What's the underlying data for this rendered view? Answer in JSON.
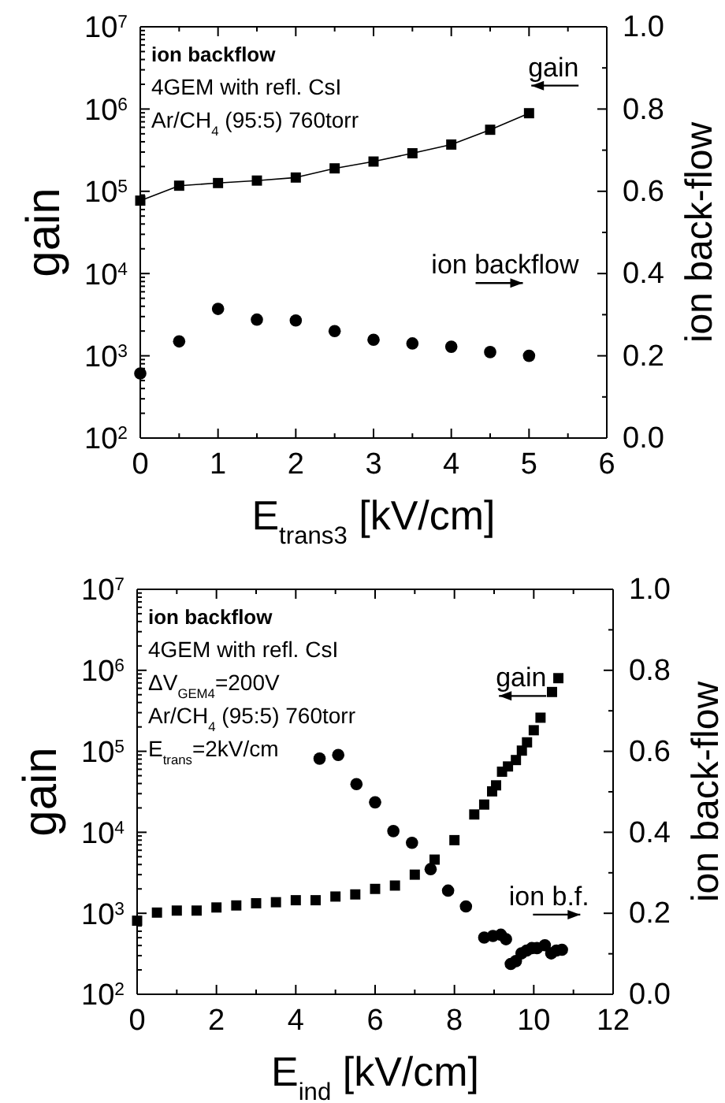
{
  "chart_data": [
    {
      "type": "scatter",
      "title": "ion backflow",
      "annotations": [
        "4GEM with refl. CsI",
        "Ar/CH$_{4}$ (95:5) 760torr"
      ],
      "xlabel": "E$_{trans3}$ [kV/cm]",
      "ylabel": "gain",
      "y2label": "ion back-flow",
      "xlim": [
        0,
        6
      ],
      "xticks": [
        0,
        1,
        2,
        3,
        4,
        5,
        6
      ],
      "ylim": [
        100,
        10000000
      ],
      "yticks": [
        {
          "value": 100,
          "label": "10$^{2}$"
        },
        {
          "value": 1000,
          "label": "10$^{3}$"
        },
        {
          "value": 10000,
          "label": "10$^{4}$"
        },
        {
          "value": 100000,
          "label": "10$^{5}$"
        },
        {
          "value": 1000000,
          "label": "10$^{6}$"
        },
        {
          "value": 10000000,
          "label": "10$^{7}$"
        }
      ],
      "y2lim": [
        0,
        1
      ],
      "y2ticks": [
        {
          "value": 0,
          "label": "0.0"
        },
        {
          "value": 0.2,
          "label": "0.2"
        },
        {
          "value": 0.4,
          "label": "0.4"
        },
        {
          "value": 0.6,
          "label": "0.6"
        },
        {
          "value": 0.8,
          "label": "0.8"
        },
        {
          "value": 1,
          "label": "1.0"
        }
      ],
      "log": "y",
      "grid": false,
      "series": [
        {
          "name": "gain",
          "type": "line",
          "marker": "square",
          "color": "#000000",
          "x": [
            0,
            0.5,
            1,
            1.5,
            2,
            2.5,
            3,
            3.5,
            4,
            4.5,
            5
          ],
          "values": [
            77000,
            117000,
            126000,
            135000,
            147000,
            190000,
            230000,
            290000,
            370000,
            560000,
            890000
          ]
        },
        {
          "name": "ion backflow",
          "type": "scatter",
          "marker": "circle",
          "axis": "y2",
          "color": "#000000",
          "x": [
            0,
            0.5,
            1,
            1.5,
            2,
            2.5,
            3,
            3.5,
            4,
            4.5,
            5
          ],
          "values": [
            0.157,
            0.235,
            0.314,
            0.288,
            0.286,
            0.26,
            0.239,
            0.23,
            0.222,
            0.209,
            0.2
          ]
        }
      ]
    },
    {
      "type": "scatter",
      "title": "ion backflow",
      "annotations": [
        "4GEM with refl. CsI",
        "ΔV$_{GEM4}$=200V",
        "Ar/CH$_{4}$ (95:5) 760torr",
        "E$_{trans}$=2kV/cm"
      ],
      "xlabel": "E$_{ind}$ [kV/cm]",
      "ylabel": "gain",
      "y2label": "ion back-flow",
      "xlim": [
        0,
        12
      ],
      "xticks": [
        0,
        2,
        4,
        6,
        8,
        10,
        12
      ],
      "ylim": [
        100,
        10000000
      ],
      "yticks": [
        {
          "value": 100,
          "label": "10$^{2}$"
        },
        {
          "value": 1000,
          "label": "10$^{3}$"
        },
        {
          "value": 10000,
          "label": "10$^{4}$"
        },
        {
          "value": 100000,
          "label": "10$^{5}$"
        },
        {
          "value": 1000000,
          "label": "10$^{6}$"
        },
        {
          "value": 10000000,
          "label": "10$^{7}$"
        }
      ],
      "y2lim": [
        0,
        1
      ],
      "y2ticks": [
        {
          "value": 0,
          "label": "0.0"
        },
        {
          "value": 0.2,
          "label": "0.2"
        },
        {
          "value": 0.4,
          "label": "0.4"
        },
        {
          "value": 0.6,
          "label": "0.6"
        },
        {
          "value": 0.8,
          "label": "0.8"
        },
        {
          "value": 1,
          "label": "1.0"
        }
      ],
      "log": "y",
      "grid": false,
      "series": [
        {
          "name": "gain",
          "type": "scatter",
          "marker": "square",
          "color": "#000000",
          "x": [
            0,
            0.5,
            1,
            1.5,
            2,
            2.5,
            3,
            3.5,
            4,
            4.5,
            5,
            5.5,
            6,
            6.5,
            7,
            7.5,
            8,
            8.5,
            8.75,
            8.95,
            9.05,
            9.2,
            9.35,
            9.55,
            9.7,
            9.83,
            10,
            10.17,
            10.46,
            10.62
          ],
          "values": [
            810,
            1020,
            1080,
            1080,
            1180,
            1250,
            1330,
            1370,
            1450,
            1450,
            1610,
            1710,
            2000,
            2200,
            3000,
            4600,
            8000,
            16600,
            22000,
            32000,
            38000,
            56000,
            65000,
            78000,
            102000,
            129000,
            182000,
            260000,
            540000,
            800000
          ]
        },
        {
          "name": "ion b.f.",
          "type": "scatter",
          "marker": "circle",
          "axis": "y2",
          "color": "#000000",
          "x": [
            4.6,
            5.07,
            5.53,
            6,
            6.46,
            6.93,
            7.4,
            7.84,
            8.29,
            8.75,
            8.97,
            9.17,
            9.3,
            9.42,
            9.55,
            9.69,
            9.82,
            9.95,
            10.08,
            10.28,
            10.44,
            10.57,
            10.71
          ],
          "values": [
            0.582,
            0.591,
            0.519,
            0.474,
            0.403,
            0.374,
            0.309,
            0.256,
            0.217,
            0.14,
            0.144,
            0.147,
            0.136,
            0.075,
            0.082,
            0.101,
            0.108,
            0.114,
            0.114,
            0.121,
            0.101,
            0.108,
            0.11
          ]
        }
      ]
    }
  ]
}
